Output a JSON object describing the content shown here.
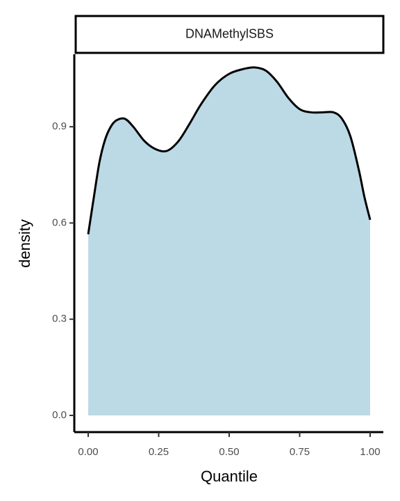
{
  "chart_data": {
    "type": "area",
    "facet_title": "DNAMethylSBS",
    "xlabel": "Quantile",
    "ylabel": "density",
    "xlim": [
      0,
      1
    ],
    "ylim": [
      0,
      1.1
    ],
    "x_ticks": [
      0,
      0.25,
      0.5,
      0.75,
      1
    ],
    "x_tick_labels": [
      "0.00",
      "0.25",
      "0.50",
      "0.75",
      "1.00"
    ],
    "y_ticks": [
      0,
      0.3,
      0.6,
      0.9
    ],
    "y_tick_labels": [
      "0.0",
      "0.3",
      "0.6",
      "0.9"
    ],
    "grid": false,
    "fill_color": "#bcd9e6",
    "line_color": "#000000",
    "x": [
      0,
      0.02,
      0.04,
      0.06,
      0.08,
      0.1,
      0.13,
      0.16,
      0.2,
      0.24,
      0.28,
      0.32,
      0.36,
      0.4,
      0.45,
      0.5,
      0.55,
      0.59,
      0.63,
      0.67,
      0.71,
      0.75,
      0.79,
      0.83,
      0.87,
      0.9,
      0.93,
      0.96,
      0.98,
      1
    ],
    "y": [
      0.565,
      0.68,
      0.79,
      0.86,
      0.9,
      0.92,
      0.925,
      0.9,
      0.855,
      0.83,
      0.825,
      0.855,
      0.91,
      0.97,
      1.03,
      1.065,
      1.08,
      1.085,
      1.075,
      1.04,
      0.99,
      0.955,
      0.945,
      0.945,
      0.945,
      0.925,
      0.87,
      0.765,
      0.68,
      0.61
    ]
  }
}
